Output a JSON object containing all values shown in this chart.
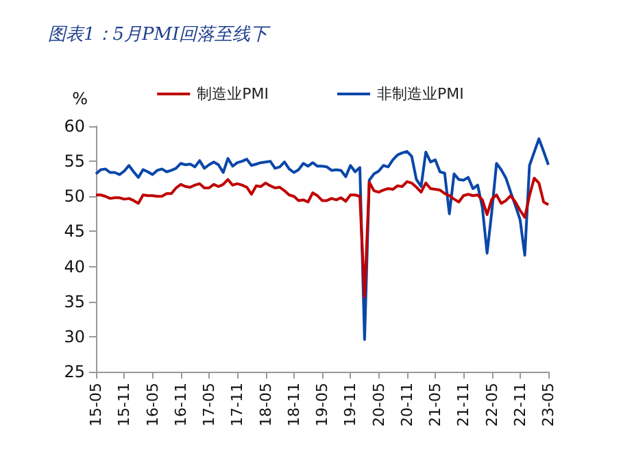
{
  "chart_data": {
    "type": "line",
    "title": "图表1：5月PMI回落至线下",
    "ylabel": "%",
    "categories": [
      "15-05",
      null,
      null,
      null,
      null,
      null,
      "15-11",
      null,
      null,
      null,
      null,
      null,
      "16-05",
      null,
      null,
      null,
      null,
      null,
      "16-11",
      null,
      null,
      null,
      null,
      null,
      "17-05",
      null,
      null,
      null,
      null,
      null,
      "17-11",
      null,
      null,
      null,
      null,
      null,
      "18-05",
      null,
      null,
      null,
      null,
      null,
      "18-11",
      null,
      null,
      null,
      null,
      null,
      "19-05",
      null,
      null,
      null,
      null,
      null,
      "19-11",
      null,
      null,
      null,
      null,
      null,
      "20-05",
      null,
      null,
      null,
      null,
      null,
      "20-11",
      null,
      null,
      null,
      null,
      null,
      "21-05",
      null,
      null,
      null,
      null,
      null,
      "21-11",
      null,
      null,
      null,
      null,
      null,
      "22-05",
      null,
      null,
      null,
      null,
      null,
      "22-11",
      null,
      null,
      null,
      null,
      null,
      "23-05"
    ],
    "series": [
      {
        "name": "制造业PMI",
        "color": "#c00000",
        "values": [
          50.2,
          50.2,
          50.0,
          49.7,
          49.8,
          49.8,
          49.6,
          49.7,
          49.4,
          49.0,
          50.2,
          50.1,
          50.1,
          50.0,
          50.0,
          50.4,
          50.4,
          51.2,
          51.7,
          51.4,
          51.3,
          51.6,
          51.8,
          51.2,
          51.2,
          51.7,
          51.4,
          51.7,
          52.4,
          51.6,
          51.8,
          51.6,
          51.3,
          50.3,
          51.5,
          51.4,
          51.9,
          51.5,
          51.2,
          51.3,
          50.8,
          50.2,
          50.0,
          49.4,
          49.5,
          49.2,
          50.5,
          50.1,
          49.4,
          49.4,
          49.7,
          49.5,
          49.8,
          49.3,
          50.2,
          50.2,
          50.0,
          35.7,
          52.0,
          50.8,
          50.6,
          50.9,
          51.1,
          51.0,
          51.5,
          51.4,
          52.1,
          51.9,
          51.3,
          50.6,
          51.9,
          51.1,
          51.0,
          50.9,
          50.4,
          50.1,
          49.6,
          49.2,
          50.1,
          50.3,
          50.1,
          50.2,
          49.5,
          47.4,
          49.6,
          50.2,
          49.0,
          49.4,
          50.1,
          49.2,
          48.0,
          47.0,
          50.1,
          52.6,
          51.9,
          49.2,
          48.8
        ]
      },
      {
        "name": "非制造业PMI",
        "color": "#0a47a8",
        "values": [
          53.2,
          53.8,
          53.9,
          53.4,
          53.4,
          53.1,
          53.6,
          54.4,
          53.5,
          52.7,
          53.8,
          53.5,
          53.1,
          53.7,
          53.9,
          53.5,
          53.7,
          54.0,
          54.7,
          54.5,
          54.6,
          54.2,
          55.1,
          54.0,
          54.5,
          54.9,
          54.5,
          53.4,
          55.4,
          54.3,
          54.8,
          55.0,
          55.3,
          54.4,
          54.6,
          54.8,
          54.9,
          55.0,
          54.0,
          54.2,
          54.9,
          53.9,
          53.4,
          53.8,
          54.7,
          54.3,
          54.8,
          54.3,
          54.3,
          54.2,
          53.7,
          53.8,
          53.7,
          52.8,
          54.4,
          53.5,
          54.1,
          29.6,
          52.3,
          53.2,
          53.6,
          54.4,
          54.2,
          55.2,
          55.9,
          56.2,
          56.4,
          55.7,
          52.4,
          51.4,
          56.3,
          54.9,
          55.2,
          53.5,
          53.3,
          47.5,
          53.2,
          52.4,
          52.3,
          52.7,
          51.1,
          51.6,
          48.4,
          41.9,
          47.8,
          54.7,
          53.8,
          52.6,
          50.6,
          48.7,
          46.7,
          41.6,
          54.4,
          56.3,
          58.2,
          56.4,
          54.5
        ]
      }
    ],
    "ylim": [
      25,
      60
    ],
    "yticks": [
      25,
      30,
      35,
      40,
      45,
      50,
      55,
      60
    ],
    "grid": false,
    "legend": "top",
    "marker": "none",
    "line_style": "solid"
  }
}
